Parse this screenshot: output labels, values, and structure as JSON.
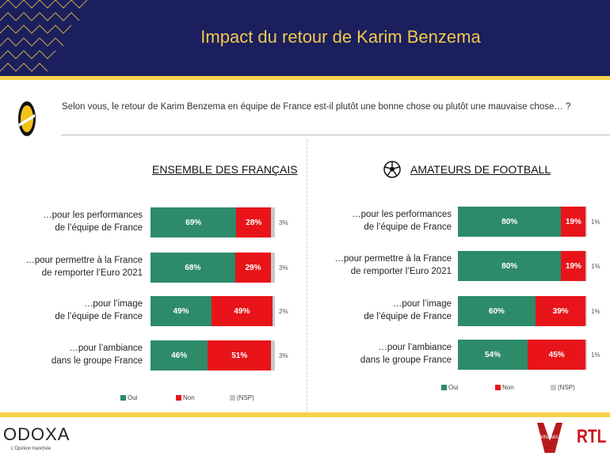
{
  "header": {
    "title": "Impact du retour de Karim Benzema"
  },
  "question": "Selon vous, le retour de Karim Benzema en équipe de France est-il plutôt une bonne chose ou plutôt une mauvaise chose… ?",
  "colors": {
    "oui": "#2e8b6a",
    "non": "#e8141a",
    "nsp": "#c9c9c9",
    "navy": "#1b1f5e",
    "yellow": "#f5d24a"
  },
  "chart_data": [
    {
      "type": "bar",
      "stacked": true,
      "orientation": "horizontal",
      "title": "ENSEMBLE DES FRANÇAIS",
      "categories": [
        [
          "…pour les performances",
          "de l’équipe de France"
        ],
        [
          "…pour permettre à la France",
          "de remporter l’Euro 2021"
        ],
        [
          "…pour l’image",
          "de l’équipe de France"
        ],
        [
          "…pour l’ambiance",
          "dans le groupe France"
        ]
      ],
      "series": [
        {
          "name": "Oui",
          "values": [
            69,
            68,
            49,
            46
          ]
        },
        {
          "name": "Non",
          "values": [
            28,
            29,
            49,
            51
          ]
        },
        {
          "name": "(NSP)",
          "values": [
            3,
            3,
            2,
            3
          ]
        }
      ]
    },
    {
      "type": "bar",
      "stacked": true,
      "orientation": "horizontal",
      "title": "AMATEURS DE FOOTBALL",
      "categories": [
        [
          "…pour les performances",
          "de l’équipe de France"
        ],
        [
          "…pour permettre à la France",
          "de remporter l’Euro 2021"
        ],
        [
          "…pour l’image",
          "de l’équipe de France"
        ],
        [
          "…pour l’ambiance",
          "dans le groupe France"
        ]
      ],
      "series": [
        {
          "name": "Oui",
          "values": [
            80,
            80,
            60,
            54
          ]
        },
        {
          "name": "Non",
          "values": [
            19,
            19,
            39,
            45
          ]
        },
        {
          "name": "(NSP)",
          "values": [
            1,
            1,
            1,
            1
          ]
        }
      ]
    }
  ],
  "footer": {
    "brand": "ODOXA",
    "tagline": "L'Opinion tranchée",
    "partner1": "WINAMAX",
    "partner2": "RTL"
  }
}
